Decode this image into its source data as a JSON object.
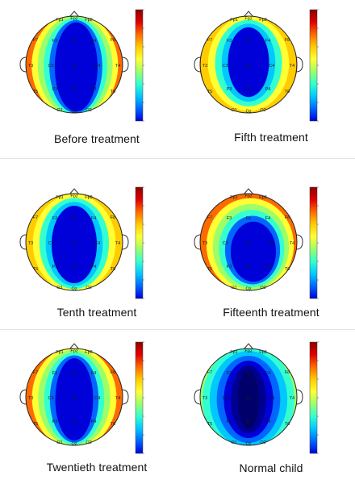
{
  "colorbar_colors": [
    "#8b0000",
    "#e00000",
    "#ff6a00",
    "#ffcc00",
    "#ffff33",
    "#9cff6a",
    "#33ffd0",
    "#00c8ff",
    "#0066ff",
    "#0000d8"
  ],
  "electrodes": [
    "Fp1",
    "Fpz",
    "Fp2",
    "F7",
    "F3",
    "Fz",
    "F4",
    "F8",
    "T3",
    "C3",
    "Cz",
    "C4",
    "T4",
    "T5",
    "P3",
    "Pz",
    "P4",
    "T6",
    "O1",
    "Oz",
    "O2"
  ],
  "panels": [
    {
      "id": "before",
      "caption": "Before treatment"
    },
    {
      "id": "fifth",
      "caption": "Fifth treatment"
    },
    {
      "id": "tenth",
      "caption": "Tenth treatment"
    },
    {
      "id": "fifteenth",
      "caption": "Fifteenth treatment"
    },
    {
      "id": "twentieth",
      "caption": "Twentieth treatment"
    },
    {
      "id": "normal",
      "caption": "Normal child"
    }
  ]
}
